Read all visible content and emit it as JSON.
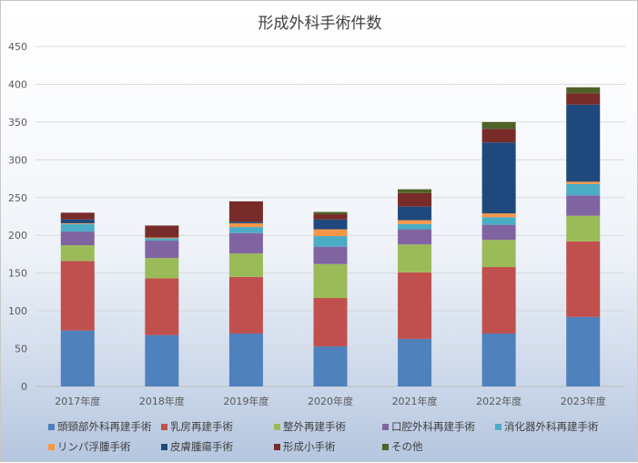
{
  "chart_data": {
    "type": "bar",
    "stacked": true,
    "title": "形成外科手術件数",
    "categories": [
      "2017年度",
      "2018年度",
      "2019年度",
      "2020年度",
      "2021年度",
      "2022年度",
      "2023年度"
    ],
    "ylim": [
      0,
      450
    ],
    "yticks": [
      0,
      50,
      100,
      150,
      200,
      250,
      300,
      350,
      400,
      450
    ],
    "grid": true,
    "legend_position": "bottom",
    "series": [
      {
        "name": "頭頸部外科再建手術",
        "color": "#4f81bd",
        "values": [
          74,
          68,
          70,
          53,
          63,
          70,
          92
        ]
      },
      {
        "name": "乳房再建手術",
        "color": "#c0504d",
        "values": [
          92,
          75,
          75,
          64,
          88,
          88,
          100
        ]
      },
      {
        "name": "整外再建手術",
        "color": "#9bbb59",
        "values": [
          21,
          27,
          31,
          45,
          37,
          36,
          34
        ]
      },
      {
        "name": "口腔外科再建手術",
        "color": "#8064a2",
        "values": [
          18,
          23,
          27,
          23,
          20,
          20,
          27
        ]
      },
      {
        "name": "消化器外科再建手術",
        "color": "#4bacc6",
        "values": [
          10,
          3,
          8,
          14,
          7,
          10,
          15
        ]
      },
      {
        "name": "リンパ浮腫手術",
        "color": "#f79646",
        "values": [
          1,
          1,
          5,
          9,
          5,
          5,
          3
        ]
      },
      {
        "name": "皮膚腫瘍手術",
        "color": "#1f497d",
        "values": [
          5,
          0,
          2,
          13,
          18,
          94,
          102
        ]
      },
      {
        "name": "形成小手術",
        "color": "#772c2a",
        "values": [
          9,
          16,
          27,
          7,
          18,
          18,
          15
        ]
      },
      {
        "name": "その他",
        "color": "#4f6228",
        "values": [
          0,
          0,
          0,
          3,
          5,
          9,
          8
        ]
      }
    ]
  }
}
